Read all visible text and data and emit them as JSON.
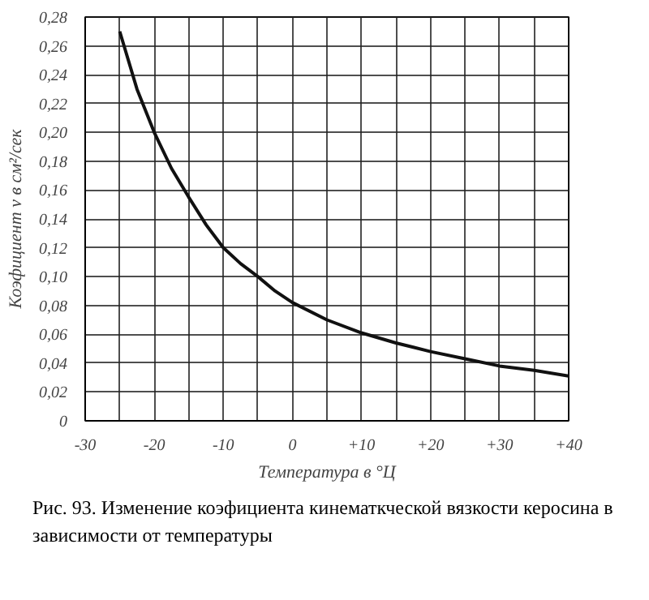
{
  "chart_data": {
    "type": "line",
    "xlabel": "Температура в °Ц",
    "ylabel": "Коэфициент ν в см²/сек",
    "x": [
      -25,
      -22.5,
      -20,
      -17.5,
      -15,
      -12.5,
      -10,
      -7.5,
      -5,
      -2.5,
      0,
      5,
      10,
      15,
      20,
      25,
      30,
      35,
      40
    ],
    "series": [
      {
        "color": "#111111",
        "values": [
          0.27,
          0.23,
          0.2,
          0.175,
          0.155,
          0.136,
          0.12,
          0.109,
          0.1,
          0.09,
          0.082,
          0.07,
          0.061,
          0.054,
          0.048,
          0.043,
          0.038,
          0.035,
          0.031
        ]
      }
    ],
    "xlim": [
      -30,
      40
    ],
    "ylim": [
      0,
      0.28
    ],
    "xticks": [
      {
        "value": -30,
        "label": "-30"
      },
      {
        "value": -25,
        "label": null
      },
      {
        "value": -20,
        "label": "-20"
      },
      {
        "value": -15,
        "label": null
      },
      {
        "value": -10,
        "label": "-10"
      },
      {
        "value": -5,
        "label": null
      },
      {
        "value": 0,
        "label": "0"
      },
      {
        "value": 5,
        "label": null
      },
      {
        "value": 10,
        "label": "+10"
      },
      {
        "value": 15,
        "label": null
      },
      {
        "value": 20,
        "label": "+20"
      },
      {
        "value": 25,
        "label": null
      },
      {
        "value": 30,
        "label": "+30"
      },
      {
        "value": 35,
        "label": null
      },
      {
        "value": 40,
        "label": "+40"
      }
    ],
    "yticks": [
      {
        "value": 0,
        "label": "0"
      },
      {
        "value": 0.02,
        "label": "0,02"
      },
      {
        "value": 0.04,
        "label": "0,04"
      },
      {
        "value": 0.06,
        "label": "0,06"
      },
      {
        "value": 0.08,
        "label": "0,08"
      },
      {
        "value": 0.1,
        "label": "0,10"
      },
      {
        "value": 0.12,
        "label": "0,12"
      },
      {
        "value": 0.14,
        "label": "0,14"
      },
      {
        "value": 0.16,
        "label": "0,16"
      },
      {
        "value": 0.18,
        "label": "0,18"
      },
      {
        "value": 0.2,
        "label": "0,20"
      },
      {
        "value": 0.22,
        "label": "0,22"
      },
      {
        "value": 0.24,
        "label": "0,24"
      },
      {
        "value": 0.26,
        "label": "0,26"
      },
      {
        "value": 0.28,
        "label": "0,28"
      }
    ],
    "grid": true,
    "marker": "none",
    "line_style": "solid",
    "annotations": [
      "Рис. 93. Изменение коэфициента кинематкческой вязкости керосина в зависимости от температуры"
    ]
  }
}
